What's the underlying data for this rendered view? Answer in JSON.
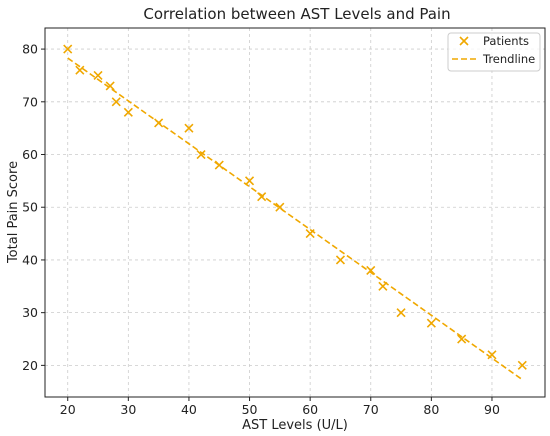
{
  "chart_data": {
    "type": "scatter",
    "title": "Correlation between AST Levels and Pain",
    "xlabel": "AST Levels (U/L)",
    "ylabel": "Total Pain Score",
    "xlim": [
      16.25,
      98.75
    ],
    "ylim": [
      14,
      84
    ],
    "xticks": [
      20,
      30,
      40,
      50,
      60,
      70,
      80,
      90
    ],
    "yticks": [
      20,
      30,
      40,
      50,
      60,
      70,
      80
    ],
    "grid": true,
    "legend_position": "top-right",
    "series": [
      {
        "name": "Patients",
        "marker": "x",
        "color": "#f0a800",
        "x": [
          20,
          22,
          25,
          27,
          28,
          30,
          35,
          40,
          42,
          45,
          50,
          52,
          55,
          60,
          65,
          70,
          72,
          75,
          80,
          85,
          90,
          95
        ],
        "y": [
          80,
          76,
          75,
          73,
          70,
          68,
          66,
          65,
          60,
          58,
          55,
          52,
          50,
          45,
          40,
          38,
          35,
          30,
          28,
          25,
          22,
          20
        ]
      },
      {
        "name": "Trendline",
        "style": "dashed",
        "color": "#f0a800",
        "x": [
          20,
          95
        ],
        "y": [
          78.3,
          17.3
        ]
      }
    ]
  }
}
